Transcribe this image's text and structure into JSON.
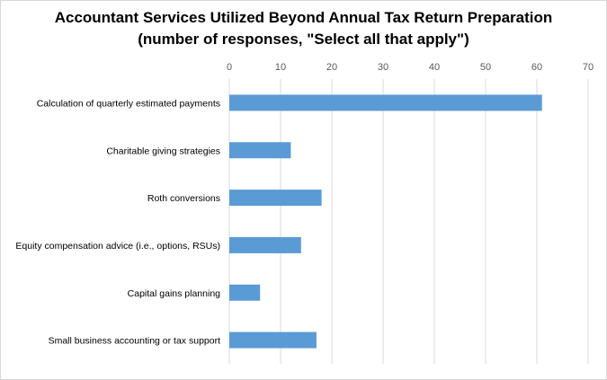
{
  "chart_data": {
    "type": "bar",
    "orientation": "horizontal",
    "title": "Accountant Services Utilized Beyond Annual Tax Return Preparation",
    "subtitle": "(number of responses, \"Select all that apply\")",
    "categories": [
      "Calculation of quarterly estimated payments",
      "Charitable giving strategies",
      "Roth conversions",
      "Equity compensation advice (i.e., options, RSUs)",
      "Capital gains planning",
      "Small business accounting or tax support"
    ],
    "values": [
      61,
      12,
      18,
      14,
      6,
      17
    ],
    "xlim": [
      0,
      70
    ],
    "xticks": [
      0,
      10,
      20,
      30,
      40,
      50,
      60,
      70
    ],
    "xticks_position": "top",
    "grid": true,
    "legend": "none",
    "bar_color": "#5B9BD5",
    "grid_color": "#D9D9D9"
  }
}
